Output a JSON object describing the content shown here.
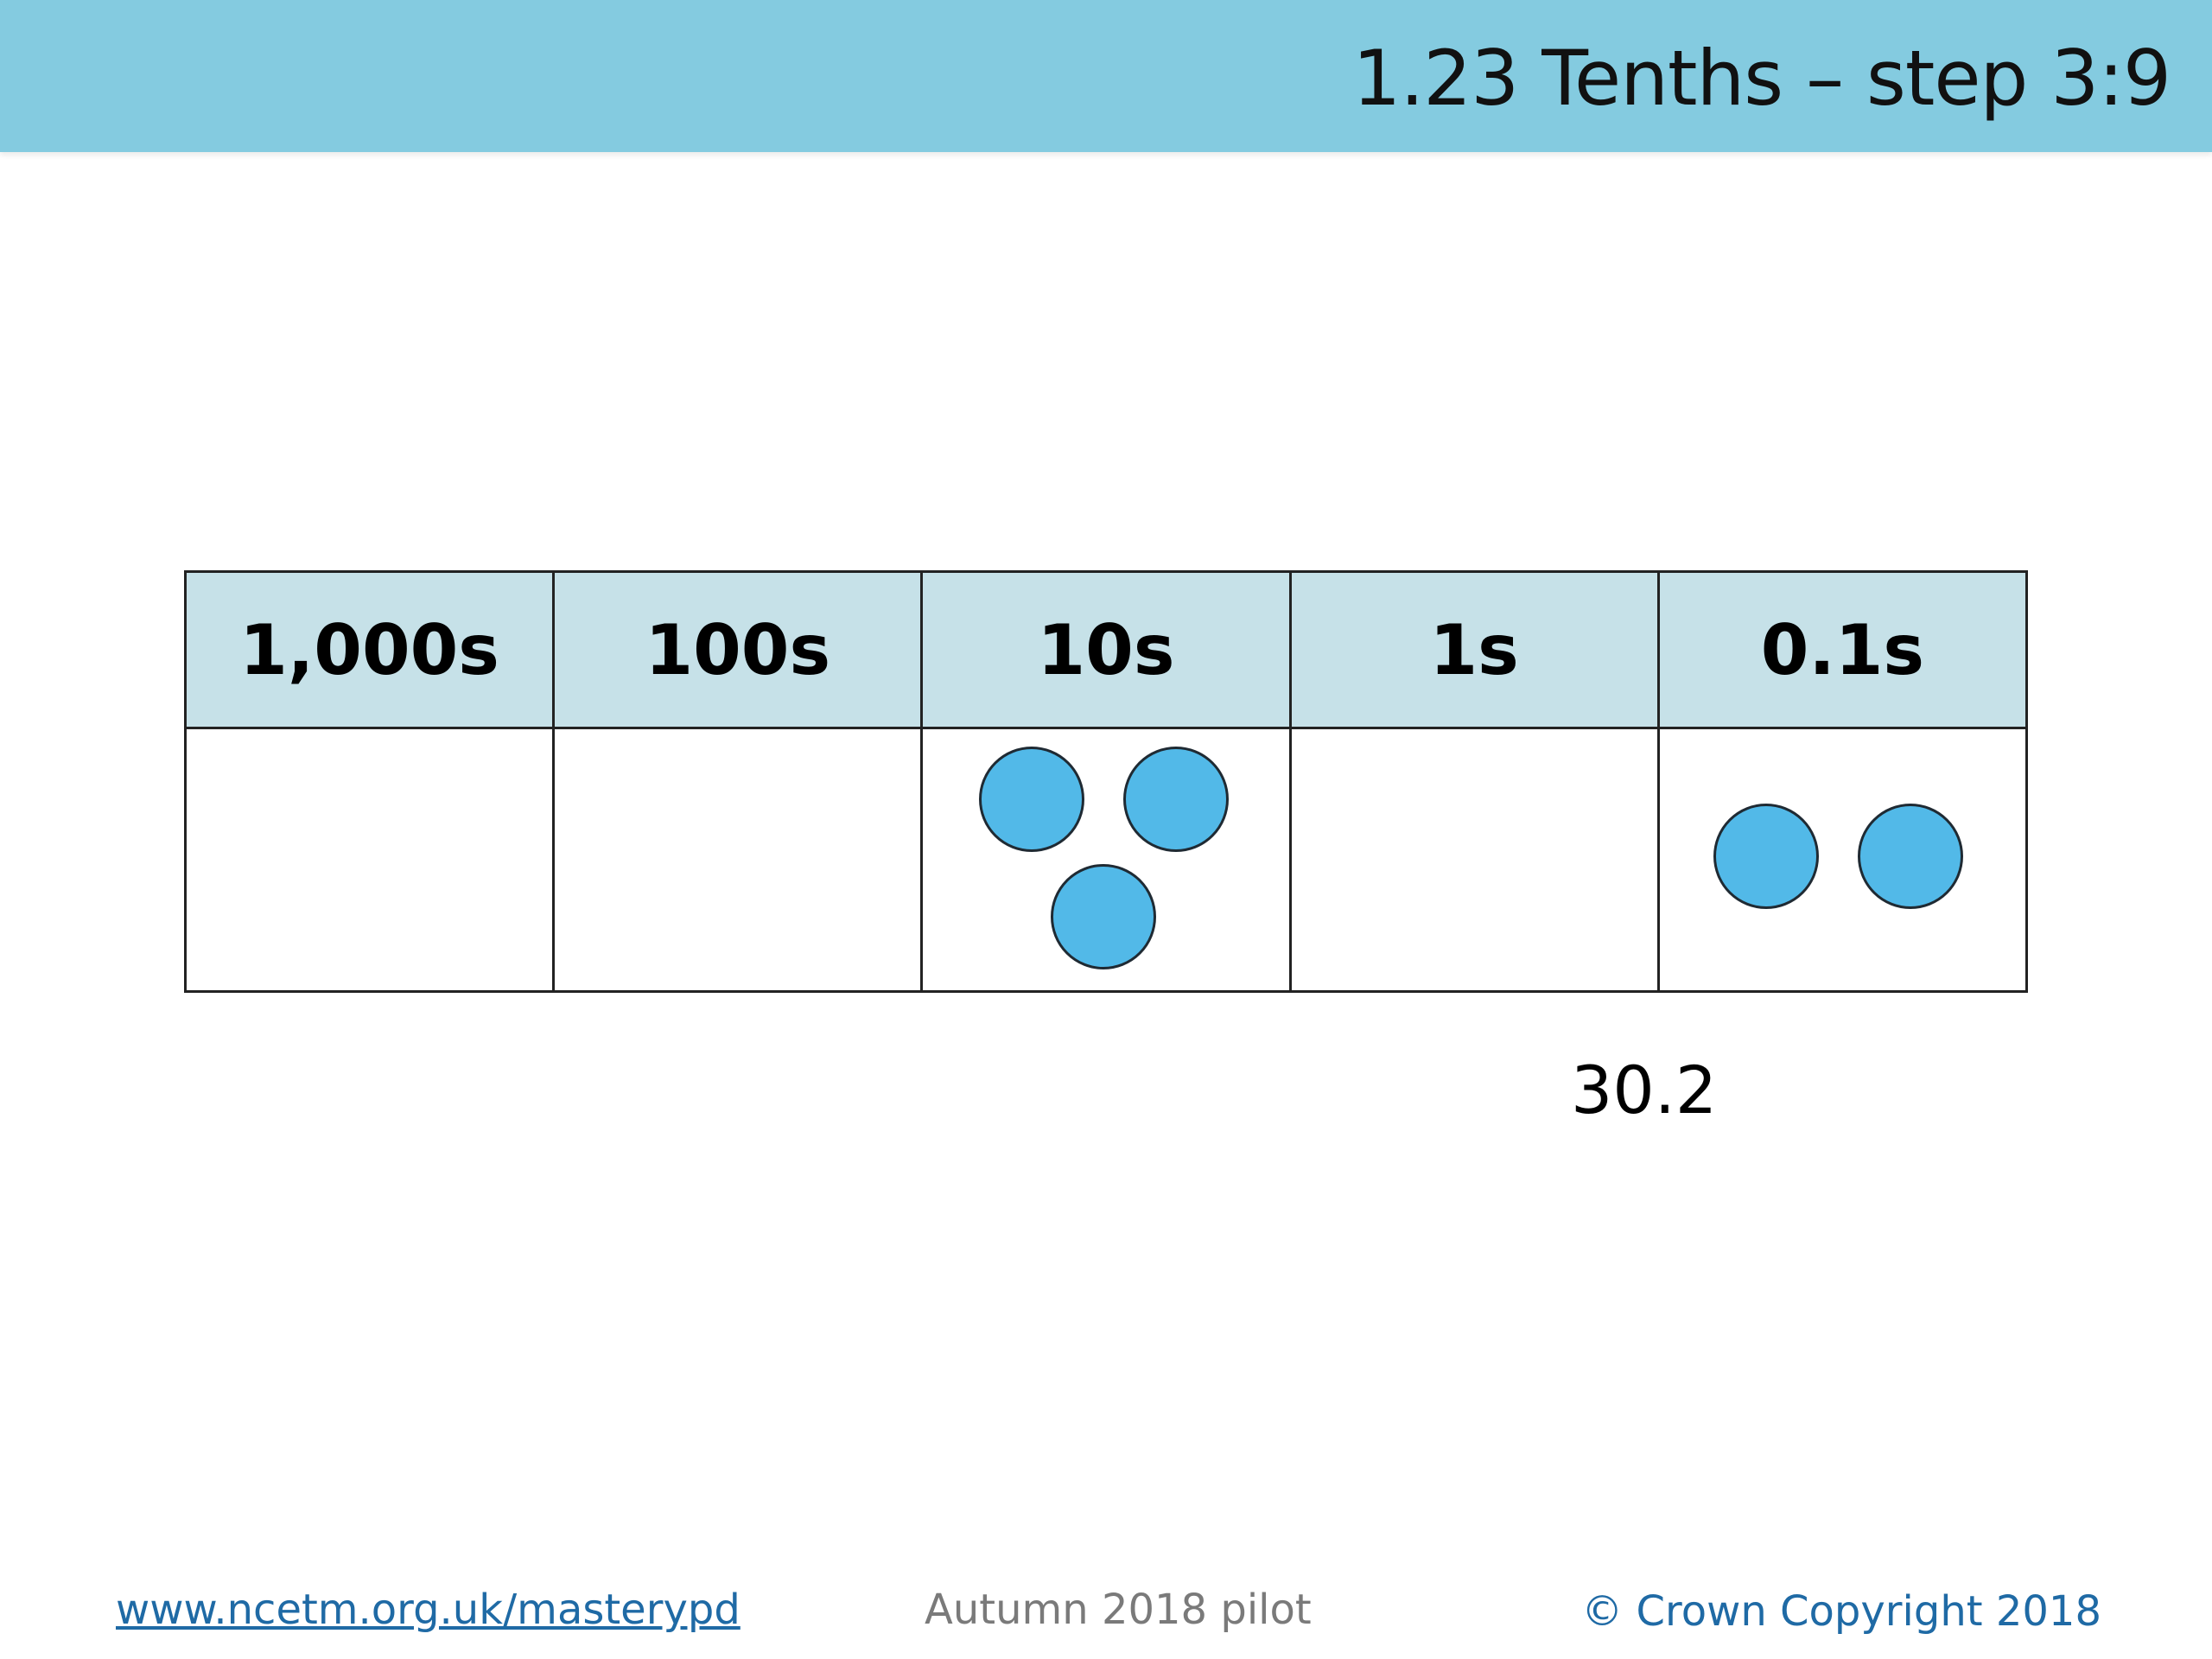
{
  "header": {
    "title": "1.23 Tenths – step 3:9"
  },
  "place_value_chart": {
    "columns": [
      {
        "label": "1,000s",
        "counters": 0
      },
      {
        "label": "100s",
        "counters": 0
      },
      {
        "label": "10s",
        "counters": 3
      },
      {
        "label": "1s",
        "counters": 0
      },
      {
        "label": "0.1s",
        "counters": 2
      }
    ],
    "counter_color": "#52b9e8",
    "header_color": "#c6e1e8"
  },
  "value_label": "30.2",
  "footer": {
    "link": "www.ncetm.org.uk/masterypd",
    "pilot": "Autumn 2018 pilot",
    "copyright": "© Crown Copyright 2018"
  },
  "colors": {
    "header_bar": "#84cbe0",
    "link": "#1f6aa5"
  }
}
